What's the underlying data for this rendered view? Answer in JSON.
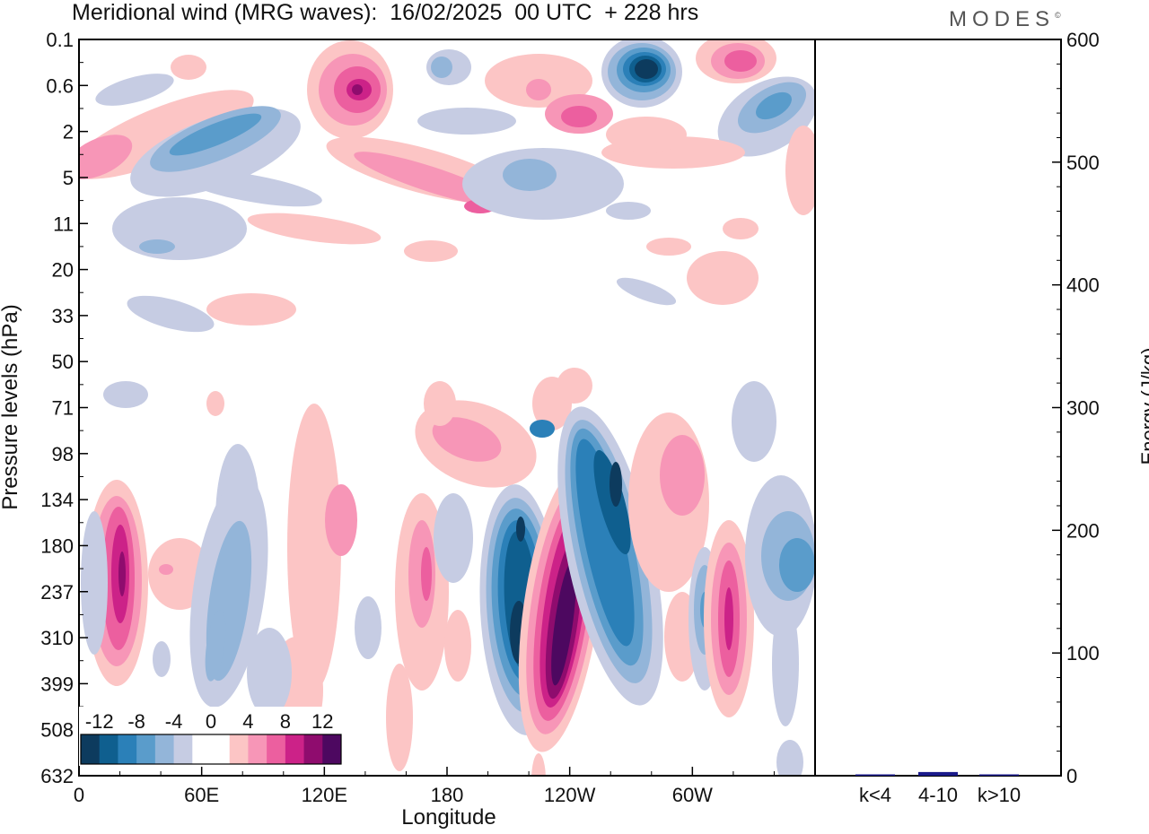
{
  "title": "Meridional wind (MRG waves):  16/02/2025  00 UTC  + 228 hrs",
  "logo": "MODES",
  "logo_mark": "©",
  "chart_data": [
    {
      "type": "heatmap",
      "title": "Meridional wind (MRG waves):  16/02/2025  00 UTC  + 228 hrs",
      "xlabel": "Longitude",
      "ylabel": "Pressure levels (hPa)",
      "x_ticks": [
        "0",
        "60E",
        "120E",
        "180",
        "120W",
        "60W"
      ],
      "y_ticks": [
        "0.1",
        "0.6",
        "2",
        "5",
        "11",
        "20",
        "33",
        "50",
        "71",
        "98",
        "134",
        "180",
        "237",
        "310",
        "399",
        "508",
        "632"
      ],
      "colorbar": {
        "labels": [
          "-12",
          "-8",
          "-4",
          "0",
          "4",
          "8",
          "12"
        ],
        "colors": [
          "#0d3b5e",
          "#0f5f8f",
          "#2b80b8",
          "#5a9ccb",
          "#93b5d9",
          "#c6cce3",
          "#ffffff",
          "#ffffff",
          "#fcc5c5",
          "#f796b7",
          "#ec5f9f",
          "#cc2288",
          "#8f0c6e",
          "#4d0860"
        ]
      }
    },
    {
      "type": "bar",
      "ylabel": "Energy (J/kg)",
      "categories": [
        "k<4",
        "4-10",
        "k>10"
      ],
      "values": [
        0.5,
        3,
        0.5
      ],
      "ylim": [
        0,
        600
      ],
      "y_ticks": [
        "0",
        "100",
        "200",
        "300",
        "400",
        "500",
        "600"
      ],
      "bar_color": "#1a1a8a"
    }
  ]
}
